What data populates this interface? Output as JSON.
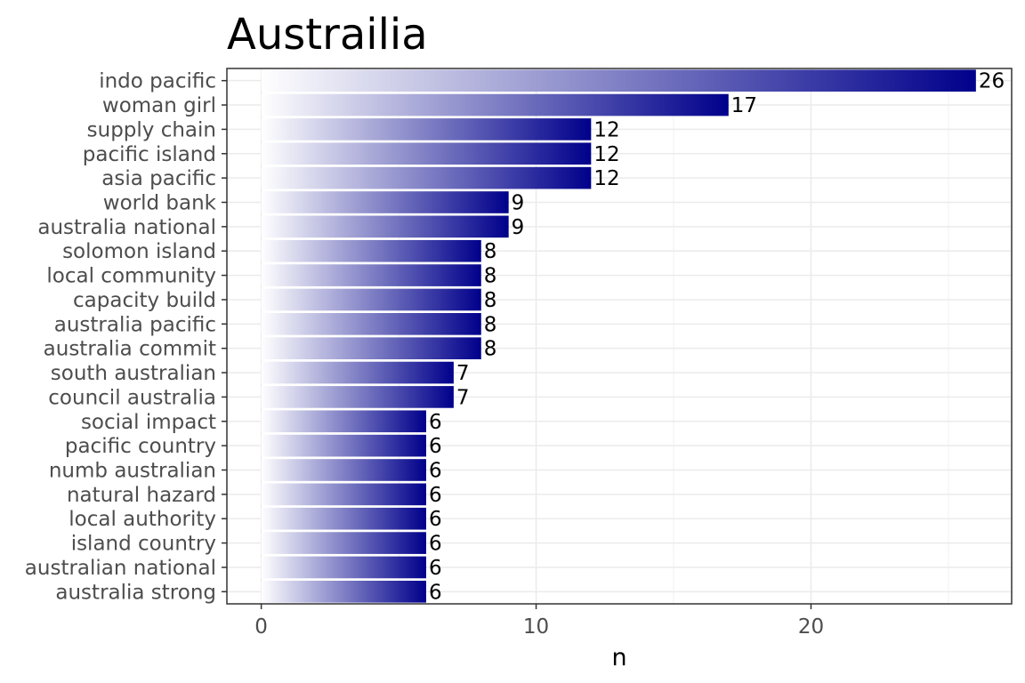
{
  "chart_data": {
    "type": "bar",
    "orientation": "horizontal",
    "title": "Austrailia",
    "xlabel": "n",
    "ylabel": "",
    "categories": [
      "indo pacific",
      "woman girl",
      "supply chain",
      "pacific island",
      "asia pacific",
      "world bank",
      "australia national",
      "solomon island",
      "local community",
      "capacity build",
      "australia pacific",
      "australia commit",
      "south australian",
      "council australia",
      "social impact",
      "pacific country",
      "numb australian",
      "natural hazard",
      "local authority",
      "island country",
      "australian national",
      "australia strong"
    ],
    "values": [
      26,
      17,
      12,
      12,
      12,
      9,
      9,
      8,
      8,
      8,
      8,
      8,
      7,
      7,
      6,
      6,
      6,
      6,
      6,
      6,
      6,
      6
    ],
    "xlim": [
      -1.25,
      27.3
    ],
    "xticks": [
      0,
      10,
      20
    ],
    "grid": true,
    "legend": "none",
    "bar_gradient": [
      "#ffffff",
      "#00008b"
    ]
  }
}
